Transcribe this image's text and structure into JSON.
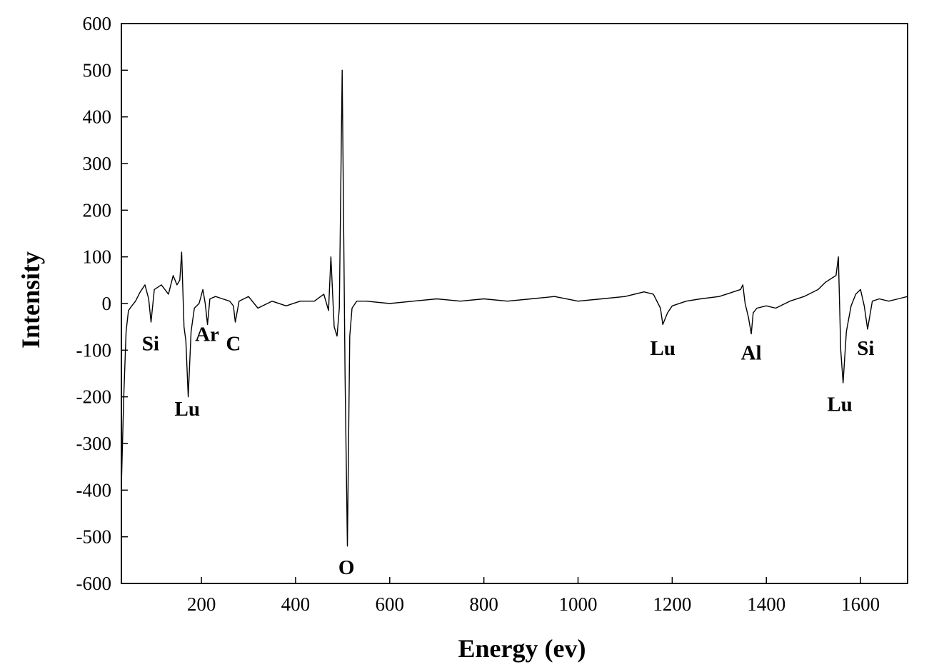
{
  "chart_data": {
    "type": "line",
    "title": "",
    "xlabel": "Energy (ev)",
    "ylabel": "Intensity",
    "xlim": [
      30,
      1700
    ],
    "ylim": [
      -600,
      600
    ],
    "xticks": [
      200,
      400,
      600,
      800,
      1000,
      1200,
      1400,
      1600
    ],
    "yticks": [
      -600,
      -500,
      -400,
      -300,
      -200,
      -100,
      0,
      100,
      200,
      300,
      400,
      500,
      600
    ],
    "grid": false,
    "legend": "none",
    "line_color": "#000000",
    "series": [
      {
        "x": [
          30,
          35,
          40,
          45,
          50,
          60,
          70,
          80,
          88,
          93,
          100,
          115,
          130,
          140,
          148,
          154,
          158,
          163,
          167,
          172,
          178,
          185,
          195,
          203,
          208,
          213,
          218,
          230,
          245,
          260,
          268,
          272,
          280,
          300,
          320,
          350,
          380,
          410,
          440,
          460,
          470,
          475,
          482,
          488,
          493,
          499,
          505,
          510,
          515,
          520,
          530,
          550,
          600,
          650,
          700,
          750,
          800,
          850,
          900,
          950,
          1000,
          1050,
          1100,
          1140,
          1160,
          1175,
          1180,
          1190,
          1200,
          1230,
          1260,
          1300,
          1330,
          1345,
          1350,
          1355,
          1362,
          1368,
          1372,
          1380,
          1400,
          1420,
          1450,
          1480,
          1510,
          1525,
          1540,
          1548,
          1553,
          1558,
          1563,
          1570,
          1580,
          1590,
          1600,
          1608,
          1615,
          1625,
          1640,
          1660,
          1680,
          1700
        ],
        "y": [
          -390,
          -200,
          -60,
          -15,
          -8,
          5,
          25,
          40,
          10,
          -40,
          30,
          40,
          20,
          60,
          40,
          50,
          110,
          -50,
          -80,
          -200,
          -60,
          -10,
          0,
          30,
          0,
          -45,
          10,
          15,
          10,
          5,
          -5,
          -40,
          5,
          15,
          -10,
          5,
          -5,
          5,
          5,
          20,
          -15,
          100,
          -50,
          -70,
          -10,
          500,
          -150,
          -520,
          -70,
          -10,
          5,
          5,
          0,
          5,
          10,
          5,
          10,
          5,
          10,
          15,
          5,
          10,
          15,
          25,
          20,
          -10,
          -45,
          -20,
          -5,
          5,
          10,
          15,
          25,
          30,
          40,
          0,
          -30,
          -65,
          -20,
          -10,
          -5,
          -10,
          5,
          15,
          30,
          45,
          55,
          60,
          100,
          -100,
          -170,
          -60,
          -5,
          20,
          30,
          -5,
          -55,
          5,
          10,
          5,
          10,
          15
        ]
      }
    ],
    "annotations": [
      {
        "text": "Si",
        "x": 92,
        "y": -85
      },
      {
        "text": "Lu",
        "x": 170,
        "y": -225
      },
      {
        "text": "Ar",
        "x": 212,
        "y": -65
      },
      {
        "text": "C",
        "x": 268,
        "y": -85
      },
      {
        "text": "O",
        "x": 508,
        "y": -565
      },
      {
        "text": "Lu",
        "x": 1180,
        "y": -95
      },
      {
        "text": "Al",
        "x": 1368,
        "y": -105
      },
      {
        "text": "Lu",
        "x": 1556,
        "y": -215
      },
      {
        "text": "Si",
        "x": 1611,
        "y": -95
      }
    ]
  }
}
